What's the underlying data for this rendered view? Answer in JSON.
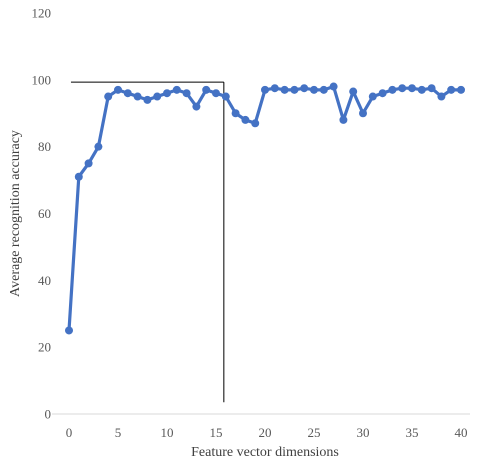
{
  "chart_data": {
    "type": "line",
    "xlabel": "Feature vector dimensions",
    "ylabel": "Average recognition accuracy",
    "xlim": [
      0,
      40
    ],
    "ylim": [
      0,
      120
    ],
    "x_ticks": [
      0,
      5,
      10,
      15,
      20,
      25,
      30,
      35,
      40
    ],
    "y_ticks": [
      0,
      20,
      40,
      60,
      80,
      100,
      120
    ],
    "grid": false,
    "legend": "none",
    "series": [
      {
        "color": "#4472c4",
        "marker": "circle",
        "x": [
          0,
          1,
          2,
          3,
          4,
          5,
          6,
          7,
          8,
          9,
          10,
          11,
          12,
          13,
          14,
          15,
          16,
          17,
          18,
          19,
          20,
          21,
          22,
          23,
          24,
          25,
          26,
          27,
          28,
          29,
          30,
          31,
          32,
          33,
          34,
          35,
          36,
          37,
          38,
          39,
          40
        ],
        "y": [
          25,
          71,
          75,
          80,
          95,
          97,
          96,
          95,
          94,
          95,
          96,
          97,
          96,
          92,
          97,
          96,
          95,
          90,
          88,
          87,
          97,
          97.5,
          97,
          97,
          97.5,
          97,
          97,
          98,
          88,
          96.5,
          90,
          95,
          96,
          97,
          97.5,
          97.5,
          97,
          97.5,
          95,
          97,
          97
        ]
      }
    ],
    "annotations": [
      {
        "type": "reference-lines",
        "color": "#000000",
        "horizontal_y": 99.3,
        "horizontal_x_range": [
          0.2,
          15.8
        ],
        "vertical_x": 15.8,
        "vertical_y_range": [
          3.5,
          99.3
        ]
      }
    ]
  }
}
